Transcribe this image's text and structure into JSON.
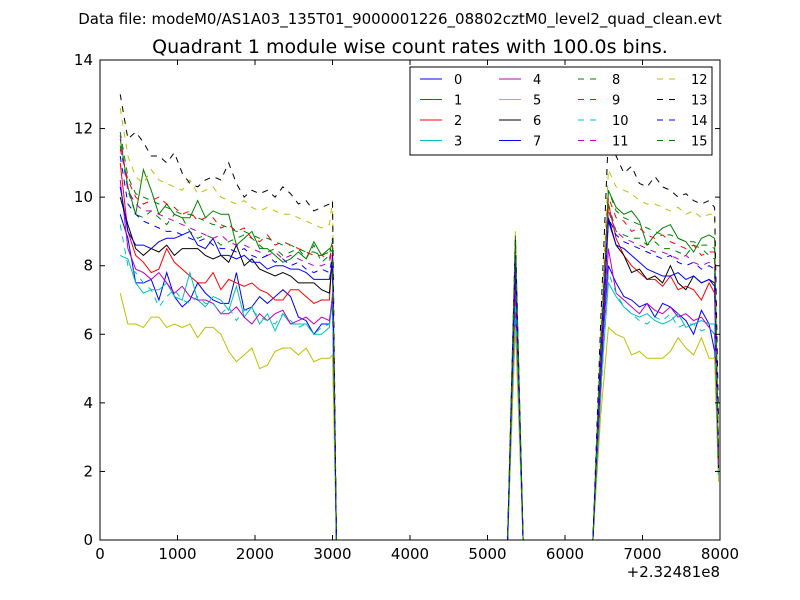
{
  "chart_data": {
    "type": "line",
    "suptitle": "Data file: modeM0/AS1A03_135T01_9000001226_08802cztM0_level2_quad_clean.evt",
    "title": "Quadrant 1 module wise count rates with 100.0s bins.",
    "xlabel": "",
    "ylabel": "",
    "x_offset_label": "+2.32481e8",
    "xlim": [
      0,
      8000
    ],
    "ylim": [
      0,
      14
    ],
    "xticks": [
      0,
      1000,
      2000,
      3000,
      4000,
      5000,
      6000,
      7000,
      8000
    ],
    "yticks": [
      0,
      2,
      4,
      6,
      8,
      10,
      12,
      14
    ],
    "legend_loc": "upper right",
    "legend_ncol": 4,
    "x_segment1": [
      260,
      360,
      460,
      560,
      660,
      760,
      860,
      960,
      1060,
      1160,
      1260,
      1360,
      1460,
      1560,
      1660,
      1760,
      1860,
      1960,
      2060,
      2160,
      2260,
      2360,
      2460,
      2560,
      2660,
      2760,
      2860,
      2960,
      3000
    ],
    "x_gap1": [
      3050,
      3100,
      3160,
      3300,
      3500,
      3700,
      3900,
      4100,
      4300,
      4500,
      4700,
      4900,
      5100,
      5260
    ],
    "x_peak": [
      5360
    ],
    "x_gap2": [
      5460,
      5600,
      5800,
      6000,
      6200,
      6360
    ],
    "x_segment2": [
      6460,
      6560,
      6660,
      6760,
      6860,
      6960,
      7060,
      7160,
      7260,
      7360,
      7460,
      7560,
      7660,
      7760,
      7860
    ],
    "x_end": [
      7930,
      7980
    ],
    "series": [
      {
        "name": "0",
        "color": "#0000ff",
        "dash": "solid",
        "seg1": [
          9.5,
          8.8,
          7.5,
          7.5,
          7.6,
          7.0,
          7.8,
          7.1,
          6.8,
          7.0,
          7.5,
          7.2,
          7.0,
          6.9,
          6.9,
          7.8,
          6.7,
          6.8,
          7.1,
          6.9,
          7.1,
          7.3,
          7.1,
          6.5,
          6.4,
          6.0,
          6.3,
          6.3,
          7.0
        ],
        "peak": 6.8,
        "seg2": [
          5.0,
          8.0,
          7.5,
          7.1,
          7.0,
          6.8,
          6.9,
          6.5,
          6.9,
          6.8,
          6.6,
          6.4,
          6.0,
          6.7,
          6.3
        ],
        "end": [
          5.5,
          3.0
        ]
      },
      {
        "name": "1",
        "color": "#008000",
        "dash": "solid",
        "seg1": [
          11.7,
          10.3,
          9.5,
          10.8,
          10.2,
          9.5,
          9.8,
          9.5,
          9.4,
          9.4,
          9.9,
          9.4,
          9.6,
          9.5,
          9.5,
          8.6,
          8.8,
          9.0,
          8.5,
          8.5,
          8.3,
          8.1,
          8.2,
          8.4,
          8.2,
          8.7,
          8.3,
          8.5,
          8.4
        ],
        "peak": 8.9,
        "seg2": [
          5.4,
          10.2,
          9.7,
          9.5,
          9.6,
          9.3,
          8.6,
          8.9,
          9.1,
          9.2,
          8.8,
          8.7,
          8.4,
          8.8,
          8.9
        ],
        "end": [
          8.8,
          2.4
        ]
      },
      {
        "name": "2",
        "color": "#ff0000",
        "dash": "solid",
        "seg1": [
          11.0,
          9.0,
          8.3,
          8.1,
          7.8,
          7.9,
          8.5,
          8.1,
          7.9,
          7.7,
          7.5,
          7.5,
          7.8,
          7.3,
          7.6,
          7.5,
          7.4,
          7.5,
          7.3,
          7.2,
          7.0,
          7.0,
          7.3,
          7.3,
          7.1,
          6.9,
          7.0,
          7.0,
          8.4
        ],
        "peak": 7.7,
        "seg2": [
          4.2,
          9.8,
          8.8,
          8.3,
          8.0,
          7.8,
          7.6,
          7.6,
          7.4,
          7.7,
          7.3,
          7.4,
          7.3,
          7.0,
          7.5
        ],
        "end": [
          7.2,
          2.3
        ]
      },
      {
        "name": "3",
        "color": "#00bfbf",
        "dash": "solid",
        "seg1": [
          8.3,
          8.2,
          7.5,
          7.2,
          7.3,
          7.3,
          7.5,
          7.1,
          7.0,
          7.8,
          7.0,
          6.8,
          7.1,
          7.0,
          6.7,
          7.4,
          6.5,
          6.8,
          6.3,
          6.6,
          6.1,
          6.6,
          6.3,
          6.3,
          6.3,
          6.0,
          6.0,
          6.2,
          7.2
        ],
        "peak": 7.1,
        "seg2": [
          4.4,
          7.5,
          7.1,
          6.8,
          6.6,
          6.5,
          6.6,
          6.4,
          6.3,
          6.4,
          6.6,
          6.2,
          6.3,
          6.4,
          6.3
        ],
        "end": [
          6.3,
          2.0
        ]
      },
      {
        "name": "4",
        "color": "#bf00bf",
        "dash": "solid",
        "seg1": [
          10.5,
          8.5,
          7.9,
          7.8,
          7.6,
          7.8,
          7.5,
          7.2,
          7.4,
          7.1,
          7.0,
          7.0,
          6.9,
          6.6,
          6.6,
          6.8,
          6.5,
          6.3,
          6.6,
          6.4,
          6.6,
          6.7,
          6.3,
          6.4,
          6.5,
          6.3,
          6.5,
          6.4,
          7.1
        ],
        "peak": 7.3,
        "seg2": [
          4.6,
          8.5,
          7.2,
          7.0,
          6.8,
          6.6,
          6.9,
          6.7,
          6.6,
          6.8,
          6.5,
          6.6,
          6.4,
          6.5,
          6.2
        ],
        "end": [
          6.0,
          2.6
        ]
      },
      {
        "name": "5",
        "color": "#bfbf00",
        "dash": "solid",
        "seg1": [
          7.2,
          6.3,
          6.3,
          6.2,
          6.5,
          6.5,
          6.2,
          6.3,
          6.2,
          6.3,
          5.9,
          6.2,
          6.2,
          6.0,
          5.5,
          5.2,
          5.4,
          5.6,
          5.0,
          5.1,
          5.5,
          5.6,
          5.6,
          5.4,
          5.6,
          5.2,
          5.3,
          5.3,
          5.4
        ],
        "peak": 6.2,
        "seg2": [
          3.6,
          6.2,
          6.0,
          5.9,
          5.4,
          5.5,
          5.3,
          5.3,
          5.3,
          5.5,
          5.9,
          5.6,
          5.4,
          5.9,
          5.3
        ],
        "end": [
          5.3,
          1.7
        ]
      },
      {
        "name": "6",
        "color": "#000000",
        "dash": "solid",
        "seg1": [
          10.0,
          9.2,
          8.5,
          8.3,
          8.5,
          8.4,
          8.6,
          8.3,
          8.5,
          8.5,
          8.5,
          8.3,
          8.2,
          8.3,
          8.1,
          8.6,
          8.0,
          8.2,
          7.9,
          7.8,
          7.7,
          7.8,
          7.7,
          7.5,
          7.5,
          7.5,
          7.3,
          7.2,
          8.2
        ],
        "peak": 8.2,
        "seg2": [
          5.3,
          9.4,
          8.6,
          8.3,
          7.8,
          7.9,
          7.6,
          7.7,
          7.5,
          8.0,
          7.5,
          7.3,
          7.7,
          7.5,
          7.6
        ],
        "end": [
          7.5,
          2.1
        ]
      },
      {
        "name": "7",
        "color": "#0000ff",
        "dash": "solid",
        "seg1": [
          10.3,
          9.0,
          8.6,
          8.6,
          8.5,
          8.7,
          8.8,
          8.8,
          8.9,
          9.0,
          8.6,
          8.5,
          8.8,
          8.3,
          8.3,
          8.2,
          8.3,
          8.1,
          8.1,
          7.9,
          8.0,
          8.0,
          7.9,
          7.9,
          7.8,
          7.6,
          7.6,
          7.6,
          8.1
        ],
        "peak": 8.1,
        "seg2": [
          4.8,
          9.3,
          8.6,
          8.5,
          8.3,
          8.1,
          7.9,
          7.8,
          7.7,
          7.7,
          7.8,
          7.6,
          7.7,
          7.5,
          7.6
        ],
        "end": [
          7.4,
          2.7
        ]
      },
      {
        "name": "8",
        "color": "#008000",
        "dash": "dashed",
        "seg1": [
          11.5,
          10.2,
          9.5,
          9.4,
          9.6,
          9.4,
          9.2,
          9.5,
          9.4,
          9.0,
          8.8,
          8.9,
          8.8,
          8.6,
          8.7,
          8.8,
          8.9,
          8.8,
          8.6,
          8.4,
          8.5,
          8.3,
          8.4,
          8.5,
          8.2,
          8.6,
          8.1,
          8.3,
          8.8
        ],
        "peak": 8.5,
        "seg2": [
          5.2,
          9.8,
          9.0,
          8.9,
          8.8,
          8.8,
          8.6,
          8.7,
          8.5,
          8.5,
          8.4,
          8.3,
          8.6,
          8.5,
          8.3
        ],
        "end": [
          8.2,
          2.5
        ]
      },
      {
        "name": "9",
        "color": "#ff0000",
        "dash": "dashed",
        "seg1": [
          11.4,
          10.5,
          10.0,
          9.8,
          9.9,
          10.0,
          9.8,
          9.7,
          9.5,
          9.6,
          9.3,
          9.4,
          9.4,
          9.1,
          9.2,
          9.0,
          9.1,
          8.8,
          8.7,
          8.9,
          8.6,
          8.7,
          8.6,
          8.5,
          8.4,
          8.3,
          8.3,
          8.2,
          8.6
        ],
        "peak": 8.6,
        "seg2": [
          5.6,
          10.0,
          9.4,
          9.3,
          9.0,
          9.1,
          8.9,
          8.8,
          8.9,
          8.7,
          8.6,
          8.5,
          8.6,
          8.3,
          8.4
        ],
        "end": [
          8.4,
          2.6
        ]
      },
      {
        "name": "10",
        "color": "#00bfbf",
        "dash": "dashed",
        "seg1": [
          9.2,
          8.0,
          7.8,
          7.5,
          7.3,
          6.8,
          7.1,
          7.3,
          7.0,
          6.9,
          7.1,
          6.9,
          6.9,
          6.6,
          6.8,
          6.4,
          6.7,
          6.7,
          6.5,
          6.4,
          6.3,
          6.6,
          6.4,
          6.2,
          6.3,
          6.0,
          6.2,
          6.3,
          6.9
        ],
        "peak": 6.9,
        "seg2": [
          4.1,
          7.8,
          7.2,
          6.8,
          6.6,
          6.4,
          6.3,
          6.5,
          6.4,
          6.6,
          6.2,
          6.3,
          6.3,
          6.1,
          6.2
        ],
        "end": [
          6.0,
          1.9
        ]
      },
      {
        "name": "11",
        "color": "#bf00bf",
        "dash": "dashed",
        "seg1": [
          11.8,
          10.2,
          9.8,
          9.6,
          9.6,
          9.5,
          9.4,
          9.3,
          9.2,
          9.1,
          9.0,
          8.9,
          8.8,
          8.9,
          8.7,
          8.6,
          8.6,
          8.5,
          8.4,
          8.3,
          8.4,
          8.2,
          8.3,
          8.2,
          8.1,
          8.0,
          8.0,
          8.1,
          8.5
        ],
        "peak": 8.4,
        "seg2": [
          5.1,
          9.6,
          9.0,
          8.8,
          8.7,
          8.6,
          8.5,
          8.4,
          8.4,
          8.3,
          8.2,
          8.3,
          8.1,
          8.0,
          8.1
        ],
        "end": [
          8.0,
          2.2
        ]
      },
      {
        "name": "12",
        "color": "#bfbf00",
        "dash": "dashed",
        "seg1": [
          12.6,
          11.2,
          10.6,
          10.4,
          10.8,
          10.5,
          10.4,
          10.3,
          10.2,
          10.5,
          10.1,
          10.2,
          10.3,
          10.0,
          9.9,
          9.8,
          9.9,
          9.7,
          9.6,
          9.7,
          9.6,
          9.5,
          9.5,
          9.4,
          9.3,
          9.2,
          9.1,
          9.2,
          9.9
        ],
        "peak": 9.0,
        "seg2": [
          6.0,
          10.8,
          10.3,
          10.2,
          10.1,
          9.9,
          9.8,
          9.8,
          9.7,
          9.6,
          9.7,
          9.5,
          9.6,
          9.4,
          9.5
        ],
        "end": [
          9.5,
          2.8
        ]
      },
      {
        "name": "13",
        "color": "#000000",
        "dash": "dashed",
        "seg1": [
          13.0,
          11.7,
          11.9,
          11.6,
          11.2,
          11.2,
          11.0,
          11.3,
          10.7,
          10.4,
          10.3,
          10.5,
          10.6,
          10.5,
          11.0,
          10.4,
          10.0,
          10.2,
          10.1,
          10.2,
          10.0,
          10.3,
          10.1,
          9.8,
          9.9,
          9.6,
          9.7,
          9.8,
          9.9
        ],
        "peak": 8.8,
        "seg2": [
          6.3,
          11.8,
          11.2,
          10.7,
          10.9,
          10.4,
          10.3,
          10.6,
          10.3,
          10.2,
          10.0,
          10.1,
          9.9,
          9.8,
          9.9
        ],
        "end": [
          9.7,
          3.5
        ]
      },
      {
        "name": "14",
        "color": "#0000ff",
        "dash": "dashed",
        "seg1": [
          11.2,
          9.8,
          9.5,
          9.3,
          9.2,
          9.1,
          9.0,
          9.0,
          8.9,
          8.8,
          8.7,
          8.8,
          8.6,
          8.5,
          8.5,
          8.4,
          8.5,
          8.3,
          8.2,
          8.3,
          8.1,
          8.2,
          8.0,
          8.1,
          7.9,
          7.8,
          7.9,
          7.8,
          8.3
        ],
        "peak": 8.2,
        "seg2": [
          5.4,
          9.4,
          8.9,
          8.7,
          8.6,
          8.5,
          8.4,
          8.3,
          8.2,
          8.3,
          8.1,
          8.0,
          8.1,
          7.9,
          8.0
        ],
        "end": [
          7.9,
          2.5
        ]
      },
      {
        "name": "15",
        "color": "#008000",
        "dash": "dashed",
        "seg1": [
          11.9,
          10.6,
          10.1,
          10.0,
          9.9,
          9.8,
          9.7,
          9.6,
          9.5,
          9.5,
          9.4,
          9.3,
          9.2,
          9.2,
          9.1,
          9.0,
          9.0,
          8.9,
          8.8,
          8.8,
          8.7,
          8.6,
          8.6,
          8.5,
          8.4,
          8.4,
          8.3,
          8.4,
          8.7
        ],
        "peak": 8.7,
        "seg2": [
          5.7,
          10.2,
          9.6,
          9.4,
          9.3,
          9.2,
          9.1,
          9.0,
          8.9,
          8.9,
          8.8,
          8.7,
          8.7,
          8.6,
          8.6
        ],
        "end": [
          8.5,
          2.4
        ]
      }
    ]
  }
}
